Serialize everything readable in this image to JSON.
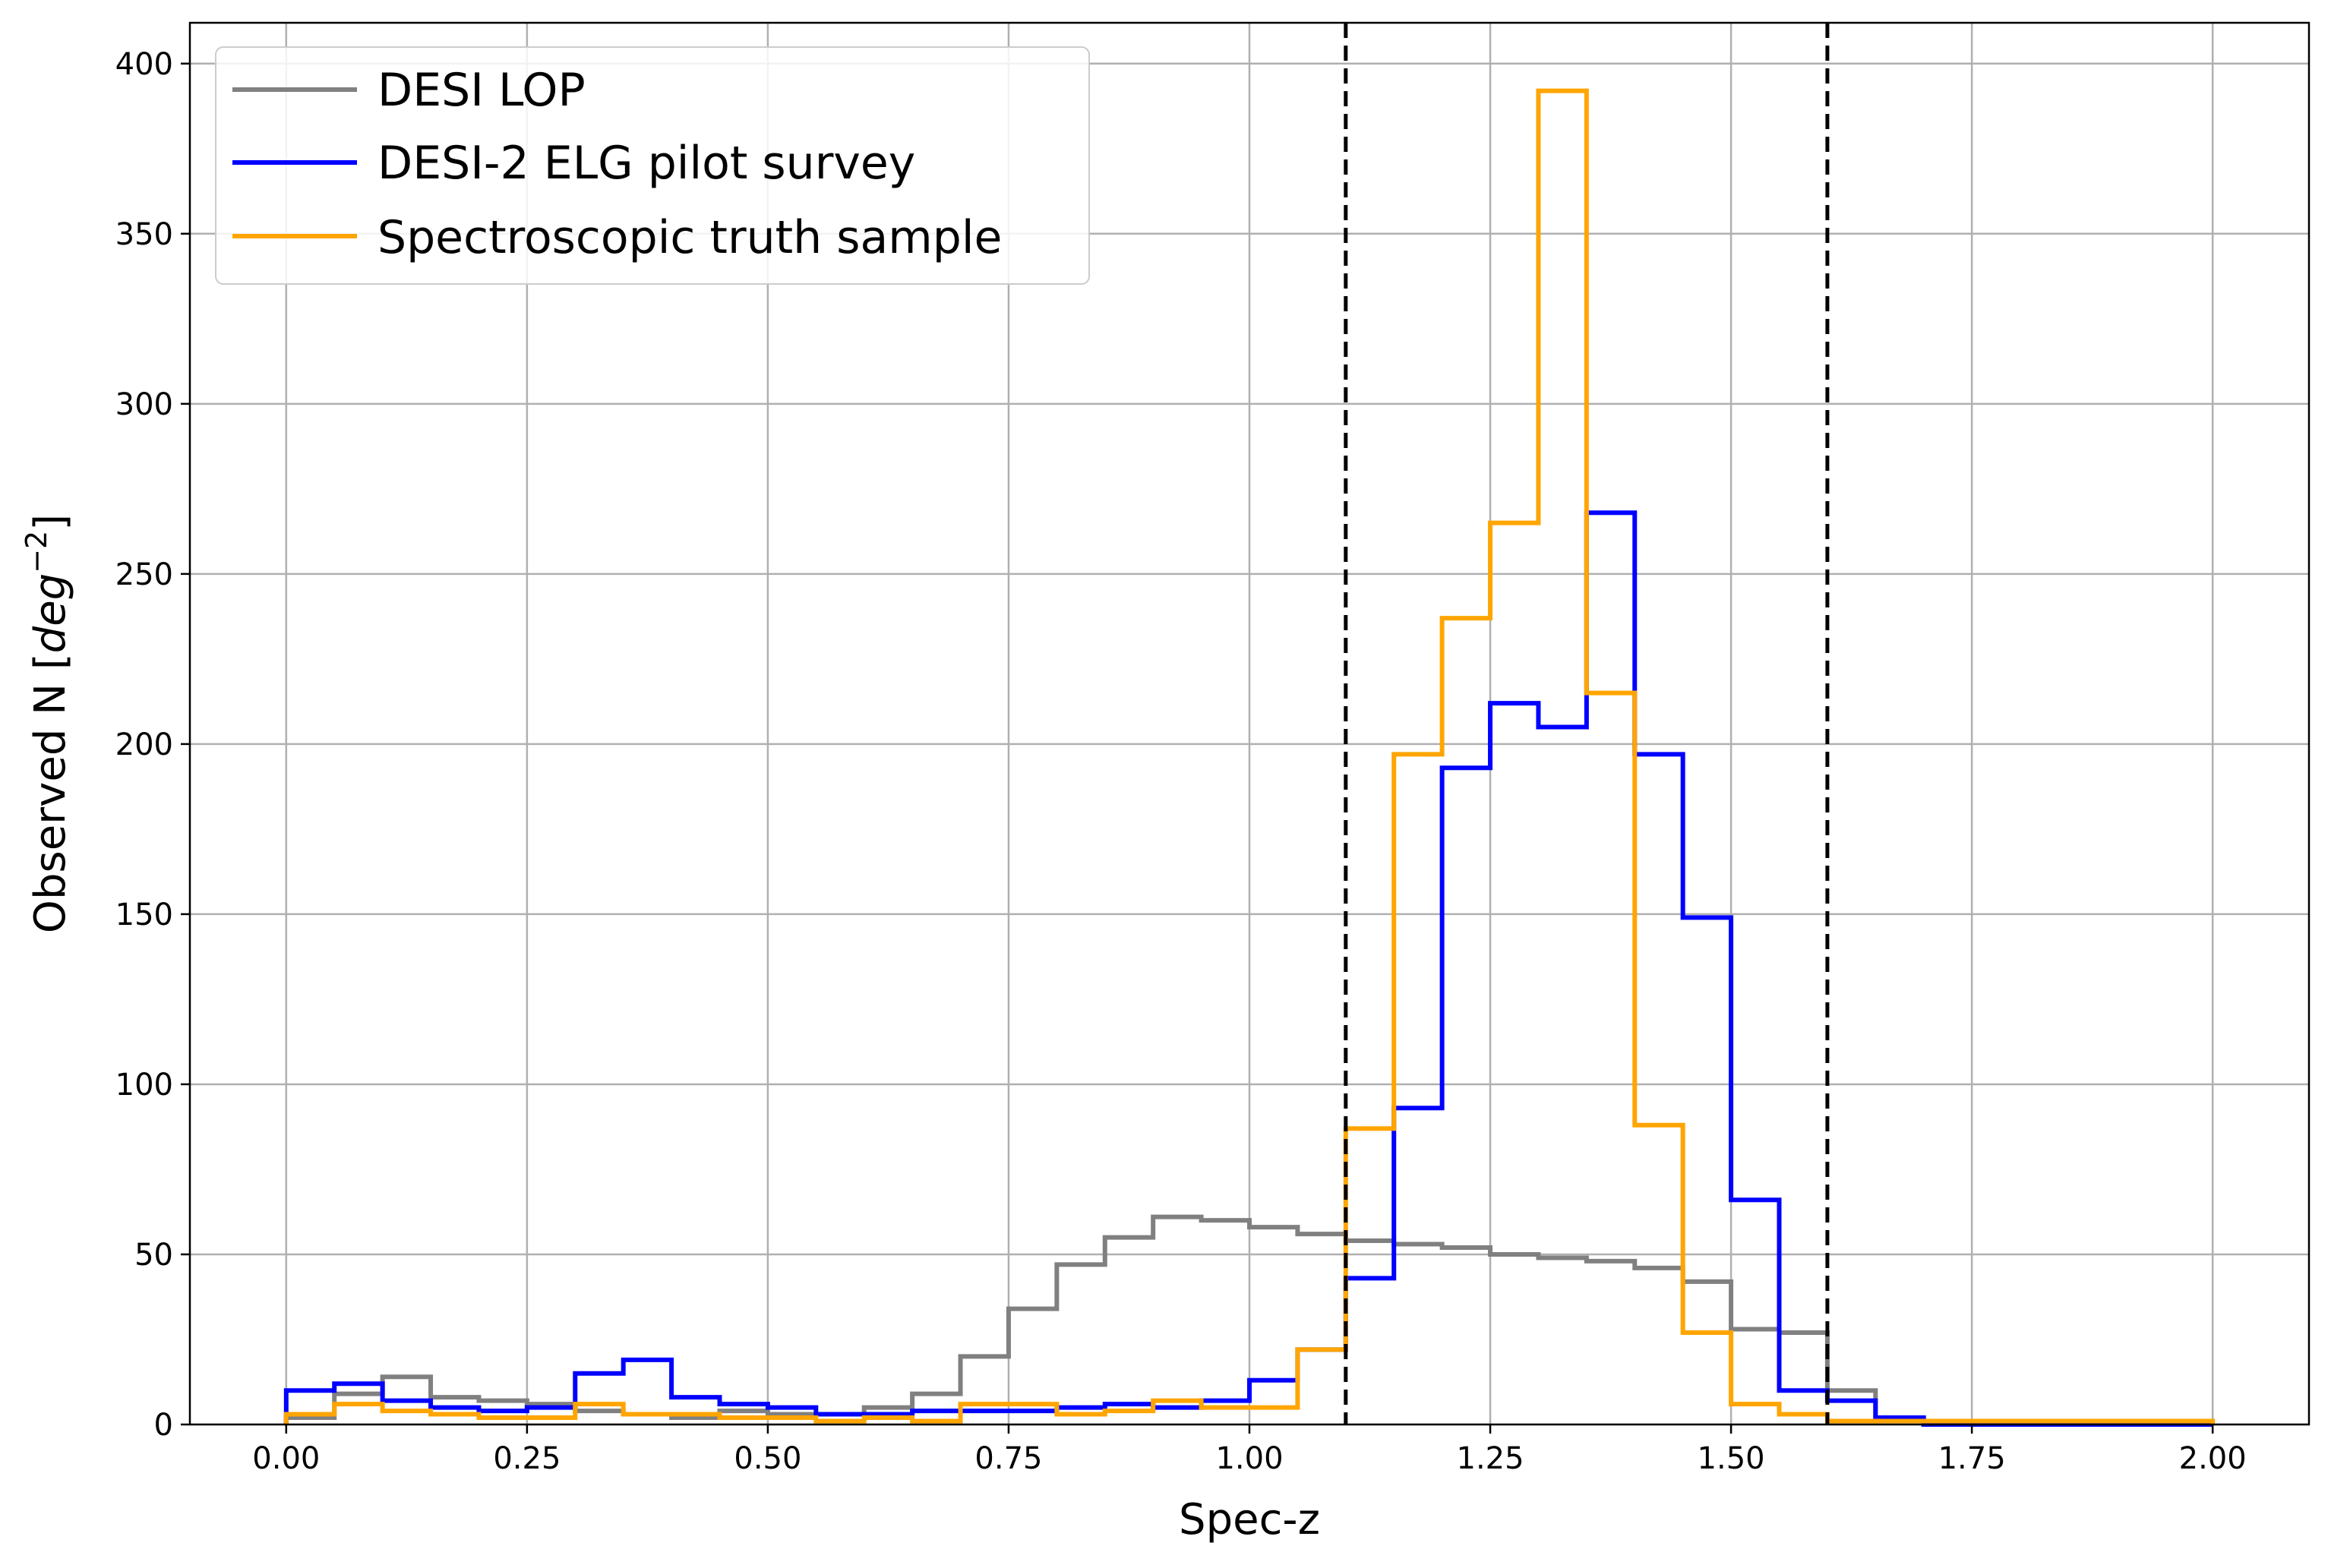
{
  "chart_data": {
    "type": "step-histogram",
    "xlabel": "Spec-z",
    "ylabel_prefix": "Observed N [",
    "ylabel_unit": "deg",
    "ylabel_exp": "−2",
    "ylabel_suffix": "]",
    "xlim": [
      -0.1,
      2.1
    ],
    "ylim": [
      0,
      412
    ],
    "xticks": [
      0.0,
      0.25,
      0.5,
      0.75,
      1.0,
      1.25,
      1.5,
      1.75,
      2.0
    ],
    "xtick_labels": [
      "0.00",
      "0.25",
      "0.50",
      "0.75",
      "1.00",
      "1.25",
      "1.50",
      "1.75",
      "2.00"
    ],
    "yticks": [
      0,
      50,
      100,
      150,
      200,
      250,
      300,
      350,
      400
    ],
    "ytick_labels": [
      "0",
      "50",
      "100",
      "150",
      "200",
      "250",
      "300",
      "350",
      "400"
    ],
    "grid": true,
    "legend_position": "top-left",
    "bin_edges": [
      0.0,
      0.05,
      0.1,
      0.15,
      0.2,
      0.25,
      0.3,
      0.35,
      0.4,
      0.45,
      0.5,
      0.55,
      0.6,
      0.65,
      0.7,
      0.75,
      0.8,
      0.85,
      0.9,
      0.95,
      1.0,
      1.05,
      1.1,
      1.15,
      1.2,
      1.25,
      1.3,
      1.35,
      1.4,
      1.45,
      1.5,
      1.55,
      1.6,
      1.65,
      1.7,
      1.75,
      1.8,
      1.85,
      1.9,
      1.95,
      2.0
    ],
    "vlines": [
      1.1,
      1.6
    ],
    "series": [
      {
        "name": "DESI LOP",
        "color": "#808080",
        "values": [
          2,
          9,
          14,
          8,
          7,
          6,
          4,
          3,
          2,
          4,
          3,
          3,
          5,
          9,
          20,
          34,
          47,
          55,
          61,
          60,
          58,
          56,
          54,
          53,
          52,
          50,
          49,
          48,
          46,
          42,
          28,
          27,
          10,
          1,
          0,
          0,
          0,
          0,
          0,
          0
        ]
      },
      {
        "name": "DESI-2 ELG pilot survey",
        "color": "#0000ff",
        "values": [
          10,
          12,
          7,
          5,
          4,
          5,
          15,
          19,
          8,
          6,
          5,
          3,
          3,
          4,
          4,
          4,
          5,
          6,
          5,
          7,
          13,
          22,
          43,
          93,
          193,
          212,
          205,
          268,
          197,
          149,
          66,
          10,
          7,
          2,
          0,
          0,
          0,
          0,
          0,
          0
        ]
      },
      {
        "name": "Spectroscopic truth sample",
        "color": "#ffa500",
        "values": [
          3,
          6,
          4,
          3,
          2,
          2,
          6,
          3,
          3,
          2,
          2,
          1,
          2,
          1,
          6,
          6,
          3,
          4,
          7,
          5,
          5,
          22,
          87,
          197,
          237,
          265,
          392,
          215,
          88,
          27,
          6,
          3,
          1,
          1,
          1,
          1,
          1,
          1,
          1,
          1
        ]
      }
    ]
  }
}
